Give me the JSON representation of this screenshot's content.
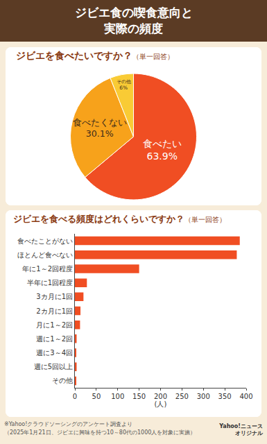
{
  "header": {
    "title_lines": [
      "ジビエ食の喫食意向と",
      "実際の頻度"
    ]
  },
  "chart_data": [
    {
      "type": "pie",
      "title": "ジビエを食べたいですか？",
      "subtitle": "（単一回答）",
      "categories": [
        "食べたい",
        "食べたくない",
        "その他"
      ],
      "values": [
        63.9,
        30.1,
        6
      ],
      "value_labels": [
        "63.9%",
        "30.1%",
        "6%"
      ],
      "colors": [
        "#f04e23",
        "#f7a21b",
        "#f9cb35"
      ],
      "data_labels": true
    },
    {
      "type": "bar",
      "orientation": "horizontal",
      "title": "ジビエを食べる頻度はどれくらいですか？",
      "subtitle": "（単一回答）",
      "categories": [
        "食べたことがない",
        "ほとんど食べない",
        "年に1～2回程度",
        "半年に1回程度",
        "3カ月に1回",
        "2カ月に1回",
        "月に1～2回",
        "週に1～2回",
        "週に3～4回",
        "週に5回以上",
        "その他"
      ],
      "values": [
        385,
        378,
        150,
        28,
        20,
        13,
        12,
        4,
        3,
        4,
        3
      ],
      "color": "#f04e23",
      "xlim": [
        0,
        400
      ],
      "xticks": [
        0,
        50,
        100,
        150,
        200,
        250,
        300,
        350,
        400
      ],
      "x_label": "(人)",
      "grid": false
    }
  ],
  "footer": {
    "notes": [
      "※Yahoo!クラウドソーシングのアンケート調査より",
      "（2025年1月21日、ジビエに興味を持つ10～80代の1000人を対象に実施）"
    ],
    "logo": [
      "Yahoo!ニュース",
      "オリジナル"
    ]
  }
}
